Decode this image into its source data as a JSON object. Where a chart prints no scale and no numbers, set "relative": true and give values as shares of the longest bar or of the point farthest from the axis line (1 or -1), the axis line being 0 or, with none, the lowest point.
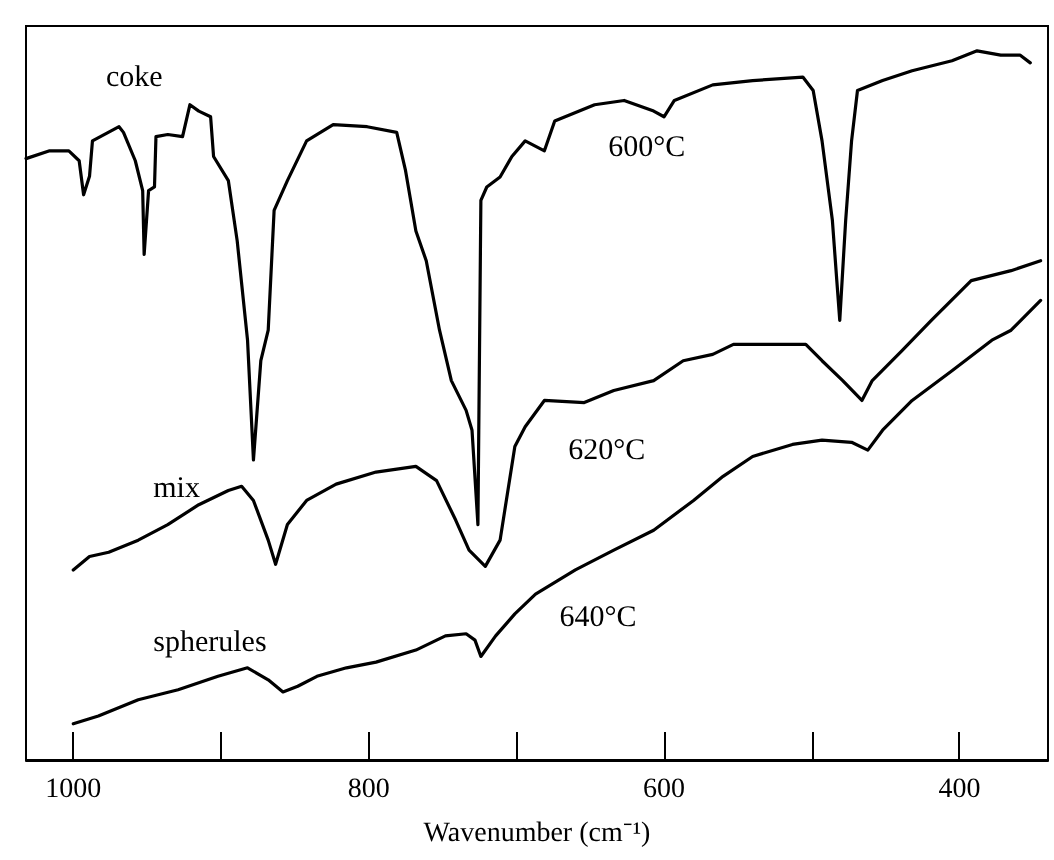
{
  "chart_data": {
    "type": "line",
    "relative": true,
    "xlabel": "Wavenumber (cm⁻¹)",
    "xlim": [
      1032,
      340
    ],
    "xticks": [
      1000,
      {
        "value": 900,
        "label": null
      },
      800,
      {
        "value": 700,
        "label": null
      },
      600,
      {
        "value": 500,
        "label": null
      },
      400
    ],
    "series": [
      {
        "name": "coke",
        "color": "#000000",
        "x": [
          1032,
          1016,
          1003,
          996,
          993,
          989,
          987,
          969,
          966,
          958,
          953,
          952,
          949,
          945,
          944,
          936,
          926,
          921,
          915,
          907,
          905,
          895,
          889,
          882,
          878,
          873,
          868,
          864,
          855,
          842,
          824,
          801,
          781,
          775,
          768,
          761,
          752,
          744,
          734,
          730,
          726,
          724,
          720,
          711,
          703,
          694,
          681,
          674,
          647,
          627,
          607,
          600,
          593,
          567,
          540,
          506,
          499,
          493,
          486,
          483,
          481,
          477,
          473,
          469,
          452,
          432,
          405,
          388,
          372,
          359,
          352
        ],
        "values": [
          0.848,
          0.859,
          0.859,
          0.845,
          0.797,
          0.823,
          0.873,
          0.893,
          0.885,
          0.845,
          0.803,
          0.713,
          0.803,
          0.808,
          0.879,
          0.882,
          0.879,
          0.924,
          0.915,
          0.907,
          0.851,
          0.817,
          0.732,
          0.592,
          0.423,
          0.563,
          0.606,
          0.775,
          0.817,
          0.873,
          0.896,
          0.893,
          0.885,
          0.831,
          0.746,
          0.704,
          0.606,
          0.535,
          0.493,
          0.465,
          0.332,
          0.789,
          0.808,
          0.822,
          0.851,
          0.873,
          0.859,
          0.901,
          0.924,
          0.93,
          0.915,
          0.907,
          0.93,
          0.952,
          0.958,
          0.963,
          0.944,
          0.873,
          0.761,
          0.676,
          0.62,
          0.761,
          0.873,
          0.944,
          0.958,
          0.972,
          0.986,
          1.0,
          0.994,
          0.994,
          0.983
        ]
      },
      {
        "name": "mix",
        "color": "#000000",
        "x": [
          1000,
          989,
          976,
          956,
          936,
          915,
          895,
          886,
          878,
          868,
          863,
          855,
          842,
          822,
          795,
          768,
          754,
          741,
          732,
          721,
          711,
          701,
          694,
          681,
          654,
          634,
          607,
          587,
          567,
          553,
          504,
          493,
          479,
          466,
          459,
          439,
          419,
          392,
          365,
          345
        ],
        "values": [
          0.268,
          0.287,
          0.293,
          0.31,
          0.332,
          0.36,
          0.38,
          0.386,
          0.366,
          0.31,
          0.276,
          0.332,
          0.366,
          0.389,
          0.406,
          0.414,
          0.394,
          0.338,
          0.296,
          0.273,
          0.31,
          0.442,
          0.47,
          0.507,
          0.504,
          0.521,
          0.535,
          0.563,
          0.572,
          0.586,
          0.586,
          0.563,
          0.535,
          0.507,
          0.535,
          0.577,
          0.62,
          0.676,
          0.69,
          0.704
        ]
      },
      {
        "name": "spherules",
        "color": "#000000",
        "x": [
          1000,
          983,
          956,
          929,
          902,
          882,
          868,
          858,
          848,
          835,
          815,
          795,
          768,
          748,
          734,
          728,
          724,
          714,
          701,
          687,
          660,
          634,
          607,
          580,
          560,
          540,
          513,
          493,
          473,
          462,
          452,
          432,
          405,
          378,
          365,
          345
        ],
        "values": [
          0.051,
          0.062,
          0.085,
          0.099,
          0.118,
          0.13,
          0.113,
          0.096,
          0.104,
          0.118,
          0.13,
          0.138,
          0.155,
          0.175,
          0.178,
          0.169,
          0.146,
          0.175,
          0.206,
          0.234,
          0.268,
          0.296,
          0.324,
          0.366,
          0.4,
          0.428,
          0.445,
          0.451,
          0.448,
          0.437,
          0.465,
          0.507,
          0.549,
          0.592,
          0.606,
          0.648
        ]
      }
    ],
    "annotations": [
      "600°C",
      "620°C",
      "640°C"
    ]
  }
}
